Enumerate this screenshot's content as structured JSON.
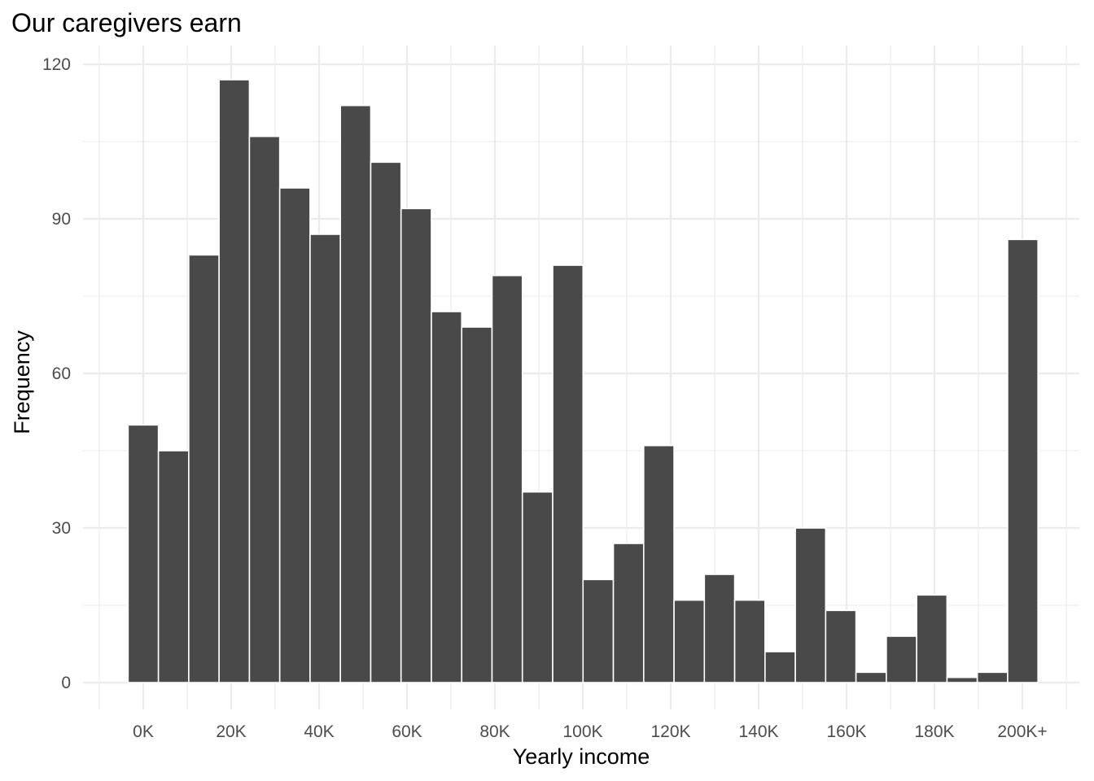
{
  "chart_data": {
    "type": "bar",
    "title": "Our caregivers earn",
    "xlabel": "Yearly income",
    "ylabel": "Frequency",
    "bar_color": "#494949",
    "bar_outline": "#ffffff",
    "grid": true,
    "legend": "none",
    "x_tick_labels": [
      "0K",
      "20K",
      "40K",
      "60K",
      "80K",
      "100K",
      "120K",
      "140K",
      "160K",
      "180K",
      "200K+"
    ],
    "y_ticks": [
      0,
      30,
      60,
      90,
      120
    ],
    "y_tick_labels": [
      "0",
      "30",
      "60",
      "90",
      "120"
    ],
    "ylim": [
      -5,
      125
    ],
    "xlim": [
      -10,
      208
    ],
    "bin_width": 6.9,
    "x": [
      0,
      6.9,
      13.8,
      20.7,
      27.6,
      34.5,
      41.4,
      48.3,
      55.2,
      62.1,
      69.0,
      75.9,
      82.8,
      89.7,
      96.6,
      103.5,
      110.4,
      117.3,
      124.2,
      131.1,
      138.0,
      144.9,
      151.8,
      158.7,
      165.6,
      172.5,
      179.4,
      186.3,
      193.2,
      200.1
    ],
    "values": [
      50,
      45,
      83,
      117,
      106,
      96,
      87,
      112,
      101,
      92,
      72,
      69,
      79,
      37,
      81,
      20,
      27,
      46,
      16,
      21,
      16,
      6,
      30,
      14,
      2,
      9,
      17,
      1,
      2,
      86
    ]
  }
}
